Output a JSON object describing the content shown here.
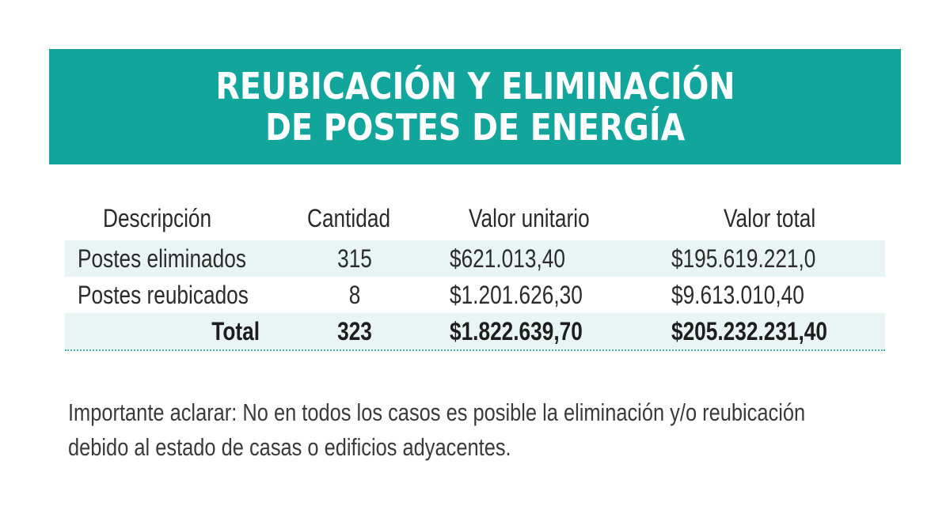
{
  "title": {
    "line1": "REUBICACIÓN Y ELIMINACIÓN",
    "line2": "DE POSTES DE ENERGÍA"
  },
  "table": {
    "headers": {
      "descripcion": "Descripción",
      "cantidad": "Cantidad",
      "valor_unitario": "Valor unitario",
      "valor_total": "Valor total"
    },
    "rows": [
      {
        "descripcion": "Postes eliminados",
        "cantidad": "315",
        "valor_unitario": "$621.013,40",
        "valor_total": "$195.619.221,0"
      },
      {
        "descripcion": "Postes reubicados",
        "cantidad": "8",
        "valor_unitario": "$1.201.626,30",
        "valor_total": "$9.613.010,40"
      }
    ],
    "total": {
      "descripcion": "Total",
      "cantidad": "323",
      "valor_unitario": "$1.822.639,70",
      "valor_total": "$205.232.231,40"
    }
  },
  "note": {
    "line1": "Importante aclarar: No en todos los casos es posible la eliminación y/o reubicación",
    "line2": "debido al estado de casas o edificios adyacentes."
  },
  "colors": {
    "banner": "#12a59b",
    "row_shade": "#e8f5f4",
    "dotted_rule": "#3bb3aa"
  }
}
